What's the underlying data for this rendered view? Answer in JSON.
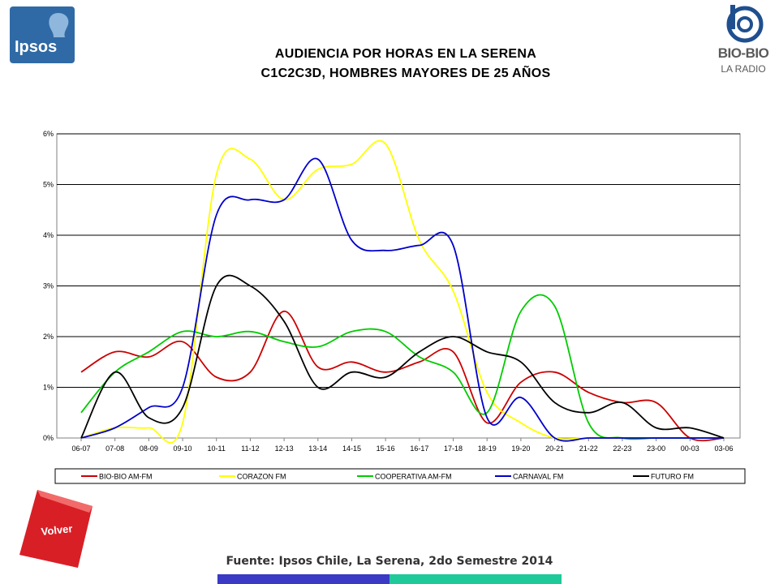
{
  "header": {
    "ipsos_logo": "Ipsos",
    "title_line1": "AUDIENCIA POR HORAS EN LA SERENA",
    "title_line2": "C1C2C3D, HOMBRES MAYORES DE 25 AÑOS",
    "biobio_logo": "BIO-BIO",
    "biobio_sub": "LA RADIO"
  },
  "footer": {
    "source": "Fuente: Ipsos Chile, La Serena, 2do Semestre 2014",
    "volver_label": "Volver"
  },
  "colors": {
    "ipsos_blue": "#2f6aa6",
    "volver_red": "#d81f26",
    "footer_blue": "#3a3ac4",
    "footer_green": "#1fc99a"
  },
  "chart_data": {
    "type": "line",
    "title": "",
    "xlabel": "",
    "ylabel": "",
    "ylim": [
      0,
      6
    ],
    "yticks": [
      "0%",
      "1%",
      "2%",
      "3%",
      "4%",
      "5%",
      "6%"
    ],
    "grid": true,
    "legend_position": "bottom",
    "categories": [
      "06-07",
      "07-08",
      "08-09",
      "09-10",
      "10-11",
      "11-12",
      "12-13",
      "13-14",
      "14-15",
      "15-16",
      "16-17",
      "17-18",
      "18-19",
      "19-20",
      "20-21",
      "21-22",
      "22-23",
      "23-00",
      "00-03",
      "03-06"
    ],
    "series": [
      {
        "name": "BIO-BIO AM-FM",
        "color": "#cc0000",
        "values": [
          1.3,
          1.7,
          1.6,
          1.9,
          1.2,
          1.3,
          2.5,
          1.4,
          1.5,
          1.3,
          1.5,
          1.7,
          0.3,
          1.1,
          1.3,
          0.9,
          0.7,
          0.7,
          0.0,
          0.0
        ]
      },
      {
        "name": "CORAZON FM",
        "color": "#ffff00",
        "values": [
          0.0,
          0.2,
          0.2,
          0.3,
          5.2,
          5.5,
          4.7,
          5.3,
          5.4,
          5.8,
          3.9,
          2.9,
          0.9,
          0.3,
          0.0,
          0.0,
          0.0,
          0.0,
          0.0,
          0.0
        ]
      },
      {
        "name": "COOPERATIVA AM-FM",
        "color": "#00cc00",
        "values": [
          0.5,
          1.3,
          1.7,
          2.1,
          2.0,
          2.1,
          1.9,
          1.8,
          2.1,
          2.1,
          1.6,
          1.3,
          0.5,
          2.5,
          2.6,
          0.3,
          0.0,
          0.0,
          0.0,
          0.0
        ]
      },
      {
        "name": "CARNAVAL FM",
        "color": "#0000cc",
        "values": [
          0.0,
          0.2,
          0.6,
          1.0,
          4.4,
          4.7,
          4.7,
          5.5,
          3.9,
          3.7,
          3.8,
          3.8,
          0.4,
          0.8,
          0.0,
          0.0,
          0.0,
          0.0,
          0.0,
          0.0
        ]
      },
      {
        "name": "FUTURO FM",
        "color": "#000000",
        "values": [
          0.0,
          1.3,
          0.4,
          0.6,
          3.0,
          3.0,
          2.3,
          1.0,
          1.3,
          1.2,
          1.7,
          2.0,
          1.7,
          1.5,
          0.7,
          0.5,
          0.7,
          0.2,
          0.2,
          0.0
        ]
      }
    ]
  }
}
